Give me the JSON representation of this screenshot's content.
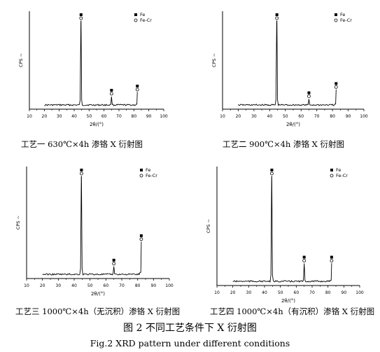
{
  "chart_data": [
    {
      "type": "line",
      "caption": "工艺一 630℃×4h 渗铬 X 衍射图",
      "xlabel": "2θ/(°)",
      "ylabel": "CPS",
      "xlim": [
        10,
        100
      ],
      "xticks": [
        "10",
        "20",
        "30",
        "40",
        "50",
        "60",
        "70",
        "80",
        "90",
        "100"
      ],
      "legend": {
        "placement": "top-right",
        "entries": [
          {
            "marker": "square",
            "name": "Fe"
          },
          {
            "marker": "circle",
            "name": "Fe-Cr"
          }
        ]
      },
      "peaks": [
        {
          "x": 44.6,
          "height": 1.0,
          "markers": [
            "square",
            "circle"
          ]
        },
        {
          "x": 65.0,
          "height": 0.1,
          "markers": [
            "square",
            "circle"
          ]
        },
        {
          "x": 82.3,
          "height": 0.15,
          "markers": [
            "square",
            "circle"
          ]
        }
      ]
    },
    {
      "type": "line",
      "caption": "工艺二 900℃×4h 渗铬 X 衍射图",
      "xlabel": "2θ/(°)",
      "ylabel": "CPS",
      "xlim": [
        10,
        100
      ],
      "xticks": [
        "10",
        "20",
        "30",
        "40",
        "50",
        "60",
        "70",
        "80",
        "90",
        "100"
      ],
      "legend": {
        "placement": "top-right",
        "entries": [
          {
            "marker": "square",
            "name": "Fe"
          },
          {
            "marker": "circle",
            "name": "Fe-Cr"
          }
        ]
      },
      "peaks": [
        {
          "x": 44.6,
          "height": 1.0,
          "markers": [
            "square",
            "circle"
          ]
        },
        {
          "x": 65.0,
          "height": 0.07,
          "markers": [
            "square",
            "circle"
          ]
        },
        {
          "x": 82.3,
          "height": 0.18,
          "markers": [
            "square",
            "circle"
          ]
        }
      ]
    },
    {
      "type": "line",
      "caption": "工艺三 1000℃×4h（无沉积）渗铬 X 衍射图",
      "xlabel": "2θ/(°)",
      "ylabel": "CPS",
      "xlim": [
        10,
        100
      ],
      "xticks": [
        "10",
        "20",
        "30",
        "40",
        "50",
        "60",
        "70",
        "80",
        "90",
        "100"
      ],
      "legend": {
        "placement": "top-right",
        "entries": [
          {
            "marker": "square",
            "name": "Fe"
          },
          {
            "marker": "circle",
            "name": "Fe-Cr"
          }
        ]
      },
      "peaks": [
        {
          "x": 44.6,
          "height": 1.0,
          "markers": [
            "square",
            "circle"
          ]
        },
        {
          "x": 65.0,
          "height": 0.08,
          "markers": [
            "square",
            "circle"
          ]
        },
        {
          "x": 82.3,
          "height": 0.33,
          "markers": [
            "square",
            "circle"
          ]
        }
      ]
    },
    {
      "type": "line",
      "caption": "工艺四 1000℃×4h（有沉积）渗铬 X 衍射图",
      "xlabel": "2θ/(°)",
      "ylabel": "CPS",
      "xlim": [
        10,
        100
      ],
      "xticks": [
        "10",
        "20",
        "30",
        "40",
        "50",
        "60",
        "70",
        "80",
        "90",
        "100"
      ],
      "legend": {
        "placement": "top-right",
        "entries": [
          {
            "marker": "square",
            "name": "Fe"
          },
          {
            "marker": "circle",
            "name": "Fe-Cr"
          }
        ]
      },
      "peaks": [
        {
          "x": 44.6,
          "height": 1.0,
          "markers": [
            "square",
            "circle"
          ]
        },
        {
          "x": 65.0,
          "height": 0.17,
          "markers": [
            "square",
            "circle"
          ]
        },
        {
          "x": 82.3,
          "height": 0.17,
          "markers": [
            "square",
            "circle"
          ]
        }
      ]
    }
  ],
  "figure": {
    "title_cn": "图 2 不同工艺条件下 X 衍射图",
    "title_en": "Fig.2 XRD pattern under different conditions"
  }
}
